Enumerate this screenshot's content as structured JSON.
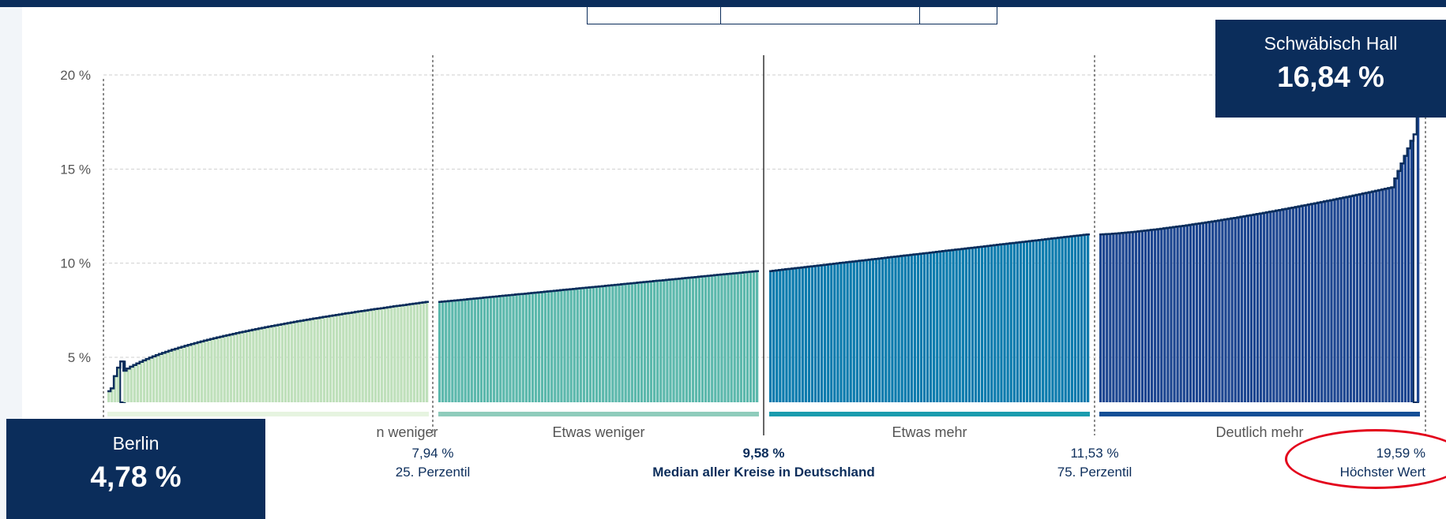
{
  "chart_data": {
    "type": "bar",
    "title": "",
    "xlabel": "",
    "ylabel": "",
    "ylim": [
      2.5,
      21.0
    ],
    "y_ticks": [
      {
        "value": 5,
        "label": "5 %"
      },
      {
        "value": 10,
        "label": "10 %"
      },
      {
        "value": 15,
        "label": "15 %"
      },
      {
        "value": 20,
        "label": "20 %"
      }
    ],
    "grid": "horizontal dashed",
    "groups": [
      {
        "name": "Deutlich weniger",
        "visible_label": "n weniger",
        "color": "#bfe0bb",
        "start": 3.0,
        "end": 7.94,
        "count": 100
      },
      {
        "name": "Etwas weniger",
        "visible_label": "Etwas weniger",
        "color": "#5cb8ac",
        "start": 7.94,
        "end": 9.58,
        "count": 100
      },
      {
        "name": "Etwas mehr",
        "visible_label": "Etwas mehr",
        "color": "#0a7aad",
        "start": 9.58,
        "end": 11.53,
        "count": 100
      },
      {
        "name": "Deutlich mehr",
        "visible_label": "Deutlich mehr",
        "color": "#1c4590",
        "start": 11.53,
        "end": 19.59,
        "count": 100
      }
    ],
    "group_bar_colors": [
      "#e6f4e0",
      "#8fccbc",
      "#1a9cae",
      "#144f96"
    ],
    "dividers": [
      {
        "value": "7,94 %",
        "label": "25. Perzentil",
        "bold": false
      },
      {
        "value": "9,58 %",
        "label": "Median aller Kreise in Deutschland",
        "bold": true
      },
      {
        "value": "11,53 %",
        "label": "75. Perzentil",
        "bold": false
      },
      {
        "value": "19,59 %",
        "label": "Höchster Wert",
        "bold": false
      }
    ],
    "highlighted": [
      {
        "name": "Berlin",
        "value": 4.78,
        "label": "4,78 %"
      },
      {
        "name": "Schwäbisch Hall",
        "value": 16.84,
        "label": "16,84 %"
      }
    ]
  },
  "tooltips": {
    "low": {
      "name": "Berlin",
      "value": "4,78 %"
    },
    "high": {
      "name": "Schwäbisch Hall",
      "value": "16,84 %"
    }
  },
  "colors": {
    "navy": "#0b2d5b",
    "annotation_red": "#e3001b",
    "grid": "#cfcfcf"
  }
}
